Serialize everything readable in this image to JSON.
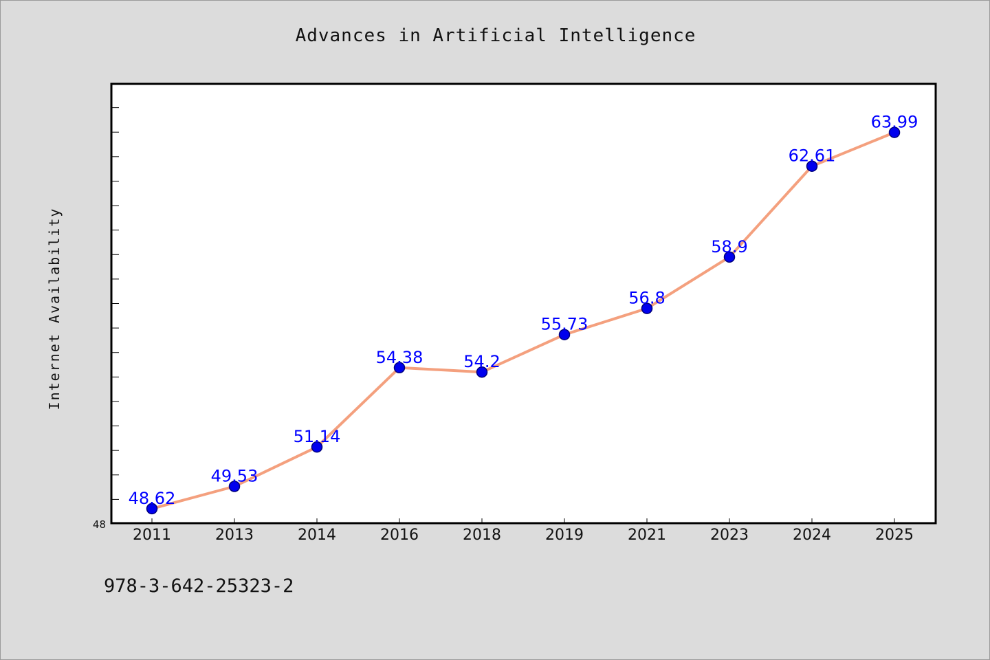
{
  "chart_data": {
    "type": "line",
    "title": "Advances in Artificial Intelligence",
    "xlabel": "",
    "ylabel": "Internet Availability",
    "categories": [
      "2011",
      "2013",
      "2014",
      "2016",
      "2018",
      "2019",
      "2021",
      "2023",
      "2024",
      "2025"
    ],
    "series": [
      {
        "values": [
          48.62,
          49.53,
          51.14,
          54.38,
          54.2,
          55.73,
          56.8,
          58.9,
          62.61,
          63.99
        ]
      }
    ],
    "ylim": [
      48,
      66
    ],
    "y_tick_labels": [
      "48"
    ],
    "y_minor_ticks": 17,
    "grid": false,
    "legend": "none",
    "colors": {
      "line": "#f4a07e",
      "marker_fill": "#0000ee",
      "marker_edge": "#00007a",
      "data_label": "#0000ff",
      "plot_background": "#ffffff",
      "figure_background": "#dcdcdc"
    }
  },
  "footer": {
    "code": "978-3-642-25323-2"
  }
}
